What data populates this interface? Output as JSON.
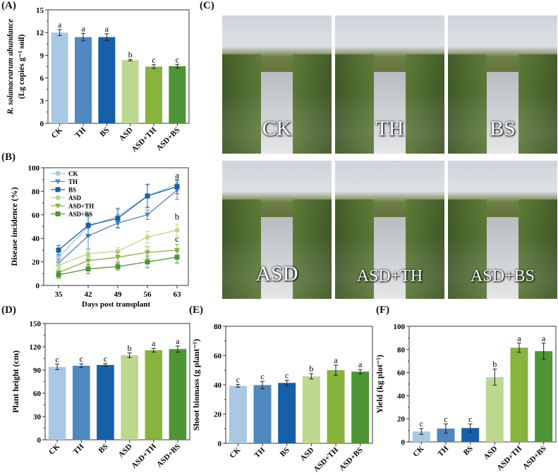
{
  "panel_labels": {
    "a": "(A)",
    "b": "(B)",
    "c": "(C)",
    "d": "(D)",
    "e": "(E)",
    "f": "(F)"
  },
  "colors": {
    "CK": "#a9c8e4",
    "TH": "#4f87bf",
    "BS": "#1560a8",
    "ASD": "#bcd88f",
    "ASD+TH": "#86b43c",
    "ASD+BS": "#4e9535"
  },
  "photos": [
    "CK",
    "TH",
    "BS",
    "ASD",
    "ASD+TH",
    "ASD+BS"
  ],
  "chart_data": [
    {
      "id": "A",
      "type": "bar",
      "categories": [
        "CK",
        "TH",
        "BS",
        "ASD",
        "ASD+TH",
        "ASD+BS"
      ],
      "values": [
        12.0,
        11.4,
        11.4,
        8.35,
        7.5,
        7.55
      ],
      "errors": [
        0.4,
        0.5,
        0.45,
        0.1,
        0.25,
        0.25
      ],
      "letters": [
        "a",
        "a",
        "a",
        "b",
        "c",
        "c"
      ],
      "ylabel": "R. solanacearum abundance",
      "ylabel2": "(Lg copies g⁻¹ soil)",
      "ylim": [
        0,
        15
      ],
      "yticks": [
        0,
        3,
        6,
        9,
        12,
        15
      ]
    },
    {
      "id": "B",
      "type": "line",
      "x": [
        35,
        42,
        49,
        56,
        63
      ],
      "xlabel": "Days post transplant",
      "ylabel": "Disease incidence (%)",
      "ylim": [
        0,
        100
      ],
      "yticks": [
        0,
        20,
        40,
        60,
        80,
        100
      ],
      "legend": "top-left",
      "series": [
        {
          "name": "CK",
          "marker": "circle",
          "values": [
            24,
            50,
            59,
            76,
            86
          ],
          "errors": [
            4,
            8,
            7,
            9,
            4
          ]
        },
        {
          "name": "TH",
          "marker": "triangle",
          "values": [
            19,
            42,
            53,
            60,
            81
          ],
          "errors": [
            3,
            11,
            4,
            4,
            8
          ]
        },
        {
          "name": "BS",
          "marker": "square",
          "values": [
            30,
            51,
            57,
            76,
            84
          ],
          "errors": [
            4,
            9,
            8,
            10,
            6
          ]
        },
        {
          "name": "ASD",
          "marker": "circle",
          "values": [
            17,
            27,
            29,
            41,
            47
          ],
          "errors": [
            3,
            3,
            3,
            5,
            5
          ]
        },
        {
          "name": "ASD+TH",
          "marker": "triangle",
          "values": [
            11,
            21,
            24,
            28,
            30
          ],
          "errors": [
            3,
            4,
            4,
            5,
            5
          ]
        },
        {
          "name": "ASD+BS",
          "marker": "square",
          "values": [
            9,
            14,
            16,
            20,
            24
          ],
          "errors": [
            3,
            4,
            3,
            5,
            5
          ]
        }
      ],
      "letters": [
        {
          "text": "a",
          "y": 91
        },
        {
          "text": "b",
          "y": 56
        },
        {
          "text": "c",
          "y": 37
        }
      ]
    },
    {
      "id": "D",
      "type": "bar",
      "categories": [
        "CK",
        "TH",
        "BS",
        "ASD",
        "ASD+TH",
        "ASD+BS"
      ],
      "values": [
        94,
        95.5,
        96.5,
        109,
        115.5,
        117
      ],
      "errors": [
        3.5,
        2.5,
        1.8,
        3,
        2.5,
        4
      ],
      "letters": [
        "c",
        "c",
        "c",
        "b",
        "a",
        "a"
      ],
      "ylabel": "Plant height (cm)",
      "ylim": [
        0,
        150
      ],
      "yticks": [
        0,
        30,
        60,
        90,
        120,
        150
      ]
    },
    {
      "id": "E",
      "type": "bar",
      "categories": [
        "CK",
        "TH",
        "BS",
        "ASD",
        "ASD+TH",
        "ASD+BS"
      ],
      "values": [
        39.3,
        39.8,
        41.3,
        45.8,
        50,
        49
      ],
      "errors": [
        1,
        2.5,
        1.8,
        1.8,
        3.5,
        1.5
      ],
      "letters": [
        "c",
        "c",
        "c",
        "b",
        "a",
        "a"
      ],
      "ylabel": "Shoot biomass (g plant⁻¹)",
      "ylim": [
        0,
        80
      ],
      "yticks": [
        0,
        20,
        40,
        60,
        80
      ]
    },
    {
      "id": "F",
      "type": "bar",
      "categories": [
        "CK",
        "TH",
        "BS",
        "ASD",
        "ASD+TH",
        "ASD+BS"
      ],
      "values": [
        9,
        11.5,
        12,
        56,
        81.5,
        78.5
      ],
      "errors": [
        2.5,
        4,
        3.5,
        7,
        4,
        7
      ],
      "letters": [
        "c",
        "c",
        "c",
        "b",
        "a",
        "a"
      ],
      "ylabel": "Yield (kg plot⁻¹)",
      "ylim": [
        0,
        100
      ],
      "yticks": [
        0,
        20,
        40,
        60,
        80,
        100
      ]
    }
  ]
}
